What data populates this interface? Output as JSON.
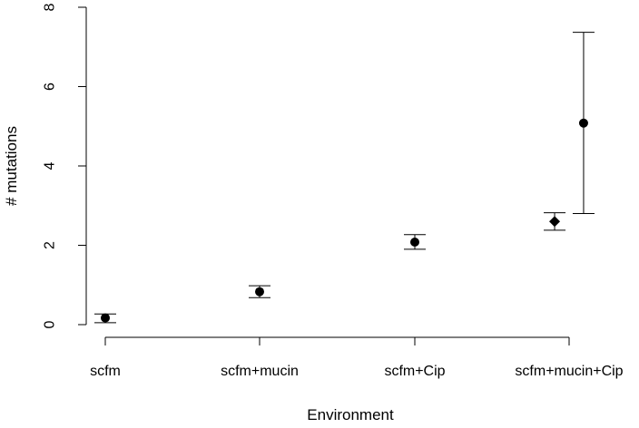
{
  "chart_data": {
    "type": "scatter",
    "title": "",
    "xlabel": "Environment",
    "ylabel": "# mutations",
    "ylim": [
      0,
      8
    ],
    "y_ticks": [
      0,
      2,
      4,
      6,
      8
    ],
    "categories": [
      "scfm",
      "scfm+mucin",
      "scfm+Cip",
      "scfm+mucin+Cip"
    ],
    "points": [
      {
        "category": "scfm",
        "marker": "circle",
        "y": 0.17,
        "low": 0.05,
        "high": 0.27,
        "offset": 0
      },
      {
        "category": "scfm+mucin",
        "marker": "circle",
        "y": 0.83,
        "low": 0.68,
        "high": 0.98,
        "offset": 0
      },
      {
        "category": "scfm+Cip",
        "marker": "circle",
        "y": 2.08,
        "low": 1.9,
        "high": 2.27,
        "offset": 0
      },
      {
        "category": "scfm+mucin+Cip",
        "marker": "diamond",
        "y": 2.6,
        "low": 2.38,
        "high": 2.82,
        "offset": -0.12
      },
      {
        "category": "scfm+mucin+Cip",
        "marker": "circle",
        "y": 5.08,
        "low": 2.8,
        "high": 7.37,
        "offset": 0.12
      }
    ]
  }
}
